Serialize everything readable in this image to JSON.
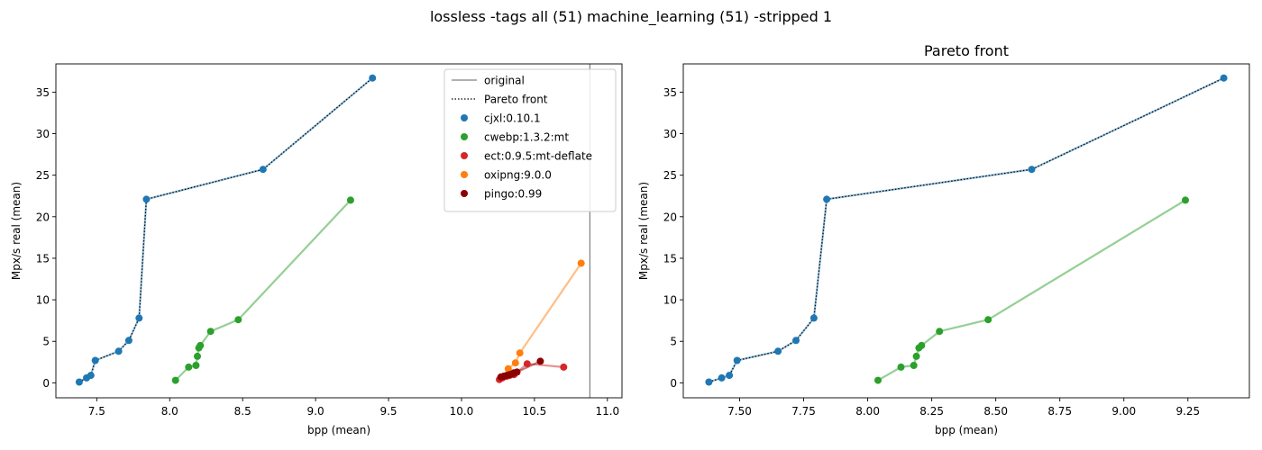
{
  "suptitle": "lossless -tags all (51) machine_learning (51) -stripped 1",
  "colors": {
    "cjxl": "#1f77b4",
    "cwebp": "#2ca02c",
    "ect": "#d62728",
    "oxipng": "#ff7f0e",
    "pingo": "#8b0000",
    "original": "#808080",
    "pareto": "#000000"
  },
  "legend": {
    "placement": "top-right",
    "entries": [
      {
        "label": "original",
        "kind": "solid-line",
        "color_key": "original"
      },
      {
        "label": "Pareto front",
        "kind": "dotted-line",
        "color_key": "pareto"
      },
      {
        "label": "cjxl:0.10.1",
        "kind": "marker",
        "color_key": "cjxl"
      },
      {
        "label": "cwebp:1.3.2:mt",
        "kind": "marker",
        "color_key": "cwebp"
      },
      {
        "label": "ect:0.9.5:mt-deflate",
        "kind": "marker",
        "color_key": "ect"
      },
      {
        "label": "oxipng:9.0.0",
        "kind": "marker",
        "color_key": "oxipng"
      },
      {
        "label": "pingo:0.99",
        "kind": "marker",
        "color_key": "pingo"
      }
    ]
  },
  "chart_data": [
    {
      "type": "scatter",
      "title": "",
      "xlabel": "bpp (mean)",
      "ylabel": "Mpx/s real (mean)",
      "xlim": [
        7.22,
        11.1
      ],
      "ylim": [
        -1.8,
        38.4
      ],
      "xticks": [
        7.5,
        8.0,
        8.5,
        9.0,
        9.5,
        10.0,
        10.5,
        11.0
      ],
      "xtick_labels": [
        "7.5",
        "8.0",
        "8.5",
        "9.0",
        "9.5",
        "10.0",
        "10.5",
        "11.0"
      ],
      "yticks": [
        0,
        5,
        10,
        15,
        20,
        25,
        30,
        35
      ],
      "ytick_labels": [
        "0",
        "5",
        "10",
        "15",
        "20",
        "25",
        "30",
        "35"
      ],
      "grid": false,
      "original_bpp": 10.88,
      "series": [
        {
          "name": "cjxl:0.10.1",
          "color_key": "cjxl",
          "connect": true,
          "pareto": true,
          "x": [
            7.38,
            7.43,
            7.46,
            7.49,
            7.65,
            7.72,
            7.79,
            7.84,
            8.64,
            9.39
          ],
          "y": [
            0.1,
            0.6,
            0.9,
            2.7,
            3.8,
            5.1,
            7.8,
            22.1,
            25.7,
            36.7
          ]
        },
        {
          "name": "cwebp:1.3.2:mt",
          "color_key": "cwebp",
          "connect": true,
          "pareto": false,
          "x": [
            8.04,
            8.13,
            8.18,
            8.19,
            8.2,
            8.21,
            8.28,
            8.47,
            9.24
          ],
          "y": [
            0.3,
            1.9,
            2.1,
            3.2,
            4.2,
            4.5,
            6.2,
            7.6,
            22.0
          ]
        },
        {
          "name": "ect:0.9.5:mt-deflate",
          "color_key": "ect",
          "connect": true,
          "pareto": false,
          "x": [
            10.26,
            10.28,
            10.31,
            10.33,
            10.36,
            10.45,
            10.7
          ],
          "y": [
            0.4,
            0.6,
            0.8,
            0.9,
            1.0,
            2.3,
            1.9
          ]
        },
        {
          "name": "oxipng:9.0.0",
          "color_key": "oxipng",
          "connect": true,
          "pareto": false,
          "x": [
            10.32,
            10.37,
            10.4,
            10.82
          ],
          "y": [
            1.7,
            2.4,
            3.6,
            14.4
          ]
        },
        {
          "name": "pingo:0.99",
          "color_key": "pingo",
          "connect": true,
          "pareto": false,
          "x": [
            10.27,
            10.29,
            10.31,
            10.33,
            10.35,
            10.36,
            10.38,
            10.54
          ],
          "y": [
            0.7,
            0.8,
            0.9,
            1.0,
            1.1,
            1.2,
            1.3,
            2.6
          ]
        }
      ]
    },
    {
      "type": "scatter",
      "title": "Pareto front",
      "xlabel": "bpp (mean)",
      "ylabel": "Mpx/s real (mean)",
      "xlim": [
        7.28,
        9.49
      ],
      "ylim": [
        -1.8,
        38.4
      ],
      "xticks": [
        7.5,
        7.75,
        8.0,
        8.25,
        8.5,
        8.75,
        9.0,
        9.25
      ],
      "xtick_labels": [
        "7.50",
        "7.75",
        "8.00",
        "8.25",
        "8.50",
        "8.75",
        "9.00",
        "9.25"
      ],
      "yticks": [
        0,
        5,
        10,
        15,
        20,
        25,
        30,
        35
      ],
      "ytick_labels": [
        "0",
        "5",
        "10",
        "15",
        "20",
        "25",
        "30",
        "35"
      ],
      "grid": false,
      "series": [
        {
          "name": "cjxl:0.10.1",
          "color_key": "cjxl",
          "connect": true,
          "pareto": true,
          "x": [
            7.38,
            7.43,
            7.46,
            7.49,
            7.65,
            7.72,
            7.79,
            7.84,
            8.64,
            9.39
          ],
          "y": [
            0.1,
            0.6,
            0.9,
            2.7,
            3.8,
            5.1,
            7.8,
            22.1,
            25.7,
            36.7
          ]
        },
        {
          "name": "cwebp:1.3.2:mt",
          "color_key": "cwebp",
          "connect": true,
          "pareto": false,
          "x": [
            8.04,
            8.13,
            8.18,
            8.19,
            8.2,
            8.21,
            8.28,
            8.47,
            9.24
          ],
          "y": [
            0.3,
            1.9,
            2.1,
            3.2,
            4.2,
            4.5,
            6.2,
            7.6,
            22.0
          ]
        }
      ]
    }
  ]
}
